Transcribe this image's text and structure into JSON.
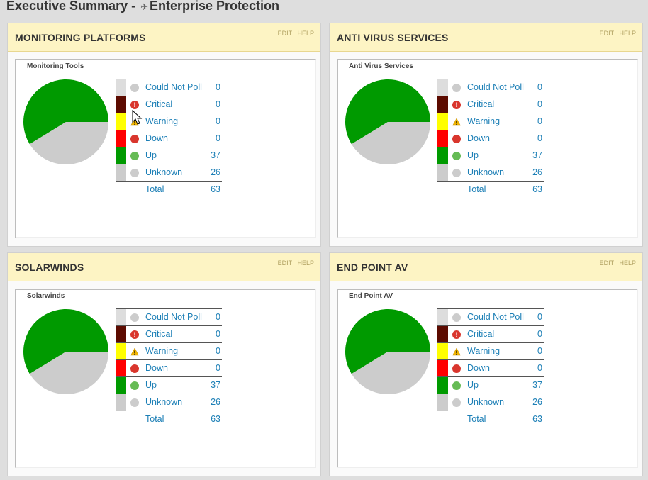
{
  "page": {
    "title_prefix": "Executive Summary - ",
    "pin_icon": "pin-icon",
    "title_suffix": "Enterprise Protection"
  },
  "colors": {
    "header_bg": "#fdf4c4",
    "link": "#1c7fb6",
    "up": "#009a00",
    "unknown": "#cccccc",
    "critical": "#5c0b00",
    "warning": "#ffff00",
    "down": "#ff0000"
  },
  "panels": [
    {
      "title": "MONITORING PLATFORMS",
      "edit": "EDIT",
      "help": "HELP",
      "chart_title": "Monitoring Tools",
      "rows": [
        {
          "label": "Could Not Poll",
          "value": "0",
          "status": "could-not-poll"
        },
        {
          "label": "Critical",
          "value": "0",
          "status": "critical"
        },
        {
          "label": "Warning",
          "value": "0",
          "status": "warning"
        },
        {
          "label": "Down",
          "value": "0",
          "status": "down"
        },
        {
          "label": "Up",
          "value": "37",
          "status": "up"
        },
        {
          "label": "Unknown",
          "value": "26",
          "status": "unknown"
        }
      ],
      "total_label": "Total",
      "total_value": "63"
    },
    {
      "title": "ANTI VIRUS SERVICES",
      "edit": "EDIT",
      "help": "HELP",
      "chart_title": "Anti Virus Services",
      "rows": [
        {
          "label": "Could Not Poll",
          "value": "0",
          "status": "could-not-poll"
        },
        {
          "label": "Critical",
          "value": "0",
          "status": "critical"
        },
        {
          "label": "Warning",
          "value": "0",
          "status": "warning"
        },
        {
          "label": "Down",
          "value": "0",
          "status": "down"
        },
        {
          "label": "Up",
          "value": "37",
          "status": "up"
        },
        {
          "label": "Unknown",
          "value": "26",
          "status": "unknown"
        }
      ],
      "total_label": "Total",
      "total_value": "63"
    },
    {
      "title": "SOLARWINDS",
      "edit": "EDIT",
      "help": "HELP",
      "chart_title": "Solarwinds",
      "rows": [
        {
          "label": "Could Not Poll",
          "value": "0",
          "status": "could-not-poll"
        },
        {
          "label": "Critical",
          "value": "0",
          "status": "critical"
        },
        {
          "label": "Warning",
          "value": "0",
          "status": "warning"
        },
        {
          "label": "Down",
          "value": "0",
          "status": "down"
        },
        {
          "label": "Up",
          "value": "37",
          "status": "up"
        },
        {
          "label": "Unknown",
          "value": "26",
          "status": "unknown"
        }
      ],
      "total_label": "Total",
      "total_value": "63"
    },
    {
      "title": "END POINT AV",
      "edit": "EDIT",
      "help": "HELP",
      "chart_title": "End Point AV",
      "rows": [
        {
          "label": "Could Not Poll",
          "value": "0",
          "status": "could-not-poll"
        },
        {
          "label": "Critical",
          "value": "0",
          "status": "critical"
        },
        {
          "label": "Warning",
          "value": "0",
          "status": "warning"
        },
        {
          "label": "Down",
          "value": "0",
          "status": "down"
        },
        {
          "label": "Up",
          "value": "37",
          "status": "up"
        },
        {
          "label": "Unknown",
          "value": "26",
          "status": "unknown"
        }
      ],
      "total_label": "Total",
      "total_value": "63"
    }
  ]
}
